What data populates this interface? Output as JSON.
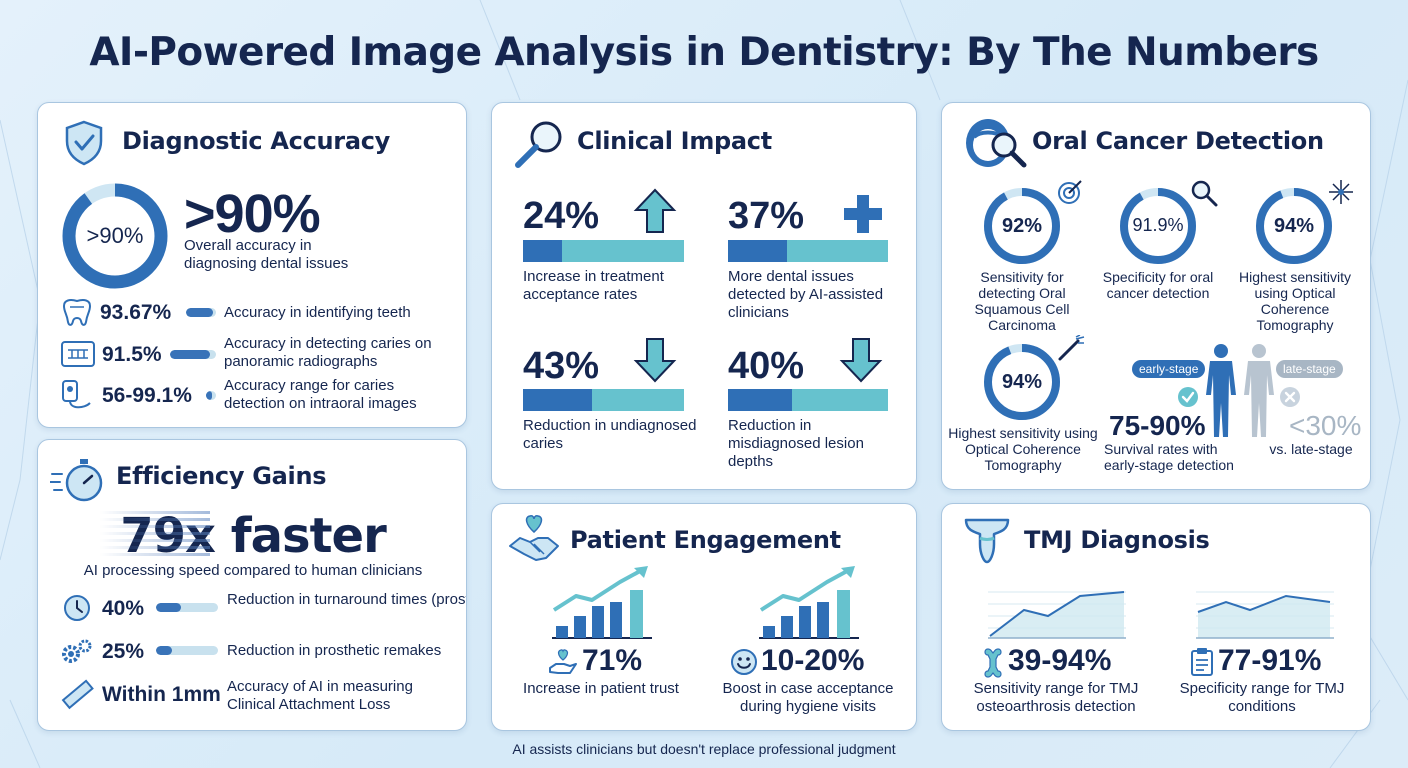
{
  "title": "AI-Powered Image Analysis in Dentistry: By The Numbers",
  "colors": {
    "navy": "#15264f",
    "blue": "#2f6fb6",
    "teal": "#66c2ce",
    "light_track": "#c8e1ee",
    "background": "#dcecf8"
  },
  "diagnostic": {
    "title": "Diagnostic Accuracy",
    "icon": "shield-check-icon",
    "ring_label": ">90%",
    "ring_fraction": 0.9,
    "headline": ">90%",
    "headline_desc": "Overall accuracy in diagnosing dental issues",
    "rows": [
      {
        "icon": "tooth-icon",
        "value": "93.67%",
        "bar_fraction": 0.9,
        "desc": "Accuracy in identifying teeth"
      },
      {
        "icon": "xray-icon",
        "value": "91.5%",
        "bar_fraction": 0.88,
        "desc": "Accuracy in detecting caries on panoramic radiographs"
      },
      {
        "icon": "intraoral-camera-icon",
        "value": "56-99.1%",
        "bar_fraction": 0.6,
        "desc": "Accuracy range for caries detection on intraoral images"
      }
    ]
  },
  "efficiency": {
    "title": "Efficiency Gains",
    "icon": "stopwatch-icon",
    "headline": "79x faster",
    "headline_desc": "AI processing speed compared to human clinicians",
    "rows": [
      {
        "icon": "clock-icon",
        "value": "40%",
        "bar_fraction": 0.4,
        "desc": "Reduction in turnaround times (prosthodontic workflow)"
      },
      {
        "icon": "gears-icon",
        "value": "25%",
        "bar_fraction": 0.25,
        "desc": "Reduction in prosthetic remakes"
      },
      {
        "icon": "ruler-icon",
        "value": "Within 1mm",
        "desc": "Accuracy of AI in measuring Clinical Attachment Loss"
      }
    ]
  },
  "clinical": {
    "title": "Clinical Impact",
    "icon": "magnifier-icon",
    "stats": [
      {
        "value": "24%",
        "fraction": 0.24,
        "icon": "arrow-up-icon",
        "desc": "Increase in treatment acceptance rates"
      },
      {
        "value": "37%",
        "fraction": 0.37,
        "icon": "plus-icon",
        "desc": "More dental issues detected by AI-assisted clinicians"
      },
      {
        "value": "43%",
        "fraction": 0.43,
        "icon": "arrow-down-icon",
        "desc": "Reduction in undiagnosed caries"
      },
      {
        "value": "40%",
        "fraction": 0.4,
        "icon": "arrow-down-icon",
        "desc": "Reduction in misdiagnosed lesion depths"
      }
    ]
  },
  "oral_cancer": {
    "title": "Oral Cancer Detection",
    "icon": "mouth-magnifier-icon",
    "rings": [
      {
        "value": "92%",
        "fraction": 0.92,
        "icon": "target-icon",
        "desc": "Sensitivity for detecting Oral Squamous Cell Carcinoma"
      },
      {
        "value": "91.9%",
        "fraction": 0.919,
        "icon": "magnifier-icon",
        "desc": "Specificity for oral cancer detection"
      },
      {
        "value": "94%",
        "fraction": 0.94,
        "icon": "sparkle-icon",
        "desc": "Highest sensitivity using Optical Coherence Tomography"
      },
      {
        "value": "94%",
        "fraction": 0.94,
        "icon": "scanner-icon",
        "desc": "Highest sensitivity using Optical Coherence Tomography"
      }
    ],
    "early_label": "early-stage",
    "late_label": "late-stage",
    "early_value": "75-90%",
    "early_desc": "Survival rates with early-stage detection",
    "late_value": "<30%",
    "late_desc": "vs. late-stage"
  },
  "patient": {
    "title": "Patient Engagement",
    "icon": "handshake-heart-icon",
    "stats": [
      {
        "icon": "hand-heart-icon",
        "value": "71%",
        "desc": "Increase in patient trust"
      },
      {
        "icon": "smiley-icon",
        "value": "10-20%",
        "desc": "Boost in case acceptance during hygiene visits"
      }
    ]
  },
  "tmj": {
    "title": "TMJ Diagnosis",
    "icon": "jaw-joint-icon",
    "stats": [
      {
        "icon": "bone-icon",
        "value": "39-94%",
        "desc": "Sensitivity range for TMJ osteoarthrosis detection"
      },
      {
        "icon": "clipboard-icon",
        "value": "77-91%",
        "desc": "Specificity range for TMJ conditions"
      }
    ]
  },
  "footer": "AI assists clinicians but doesn't replace professional judgment"
}
